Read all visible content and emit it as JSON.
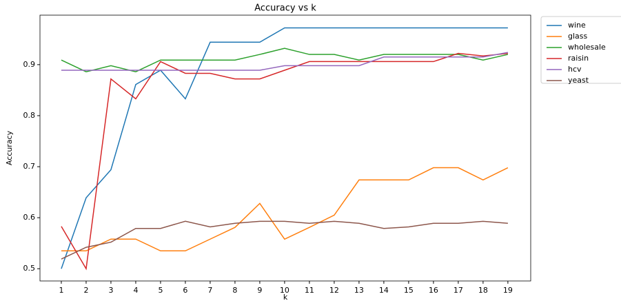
{
  "chart_data": {
    "type": "line",
    "title": "Accuracy vs k",
    "x_label": "k",
    "y_label": "Accuracy",
    "x": [
      1,
      2,
      3,
      4,
      5,
      6,
      7,
      8,
      9,
      10,
      11,
      12,
      13,
      14,
      15,
      16,
      17,
      18,
      19
    ],
    "xlim": [
      0.14,
      19.92
    ],
    "xticks": [
      1,
      2,
      3,
      4,
      5,
      6,
      7,
      8,
      9,
      10,
      11,
      12,
      13,
      14,
      15,
      16,
      17,
      18,
      19
    ],
    "ylim": [
      0.476,
      0.997
    ],
    "yticks": [
      0.5,
      0.6,
      0.7,
      0.8,
      0.9
    ],
    "legend": "outside upper right",
    "series": [
      {
        "name": "wine",
        "color": "#1f77b4",
        "values": [
          0.5,
          0.639,
          0.694,
          0.861,
          0.889,
          0.833,
          0.944,
          0.944,
          0.944,
          0.972,
          0.972,
          0.972,
          0.972,
          0.972,
          0.972,
          0.972,
          0.972,
          0.972,
          0.972
        ]
      },
      {
        "name": "glass",
        "color": "#ff7f0e",
        "values": [
          0.535,
          0.535,
          0.558,
          0.558,
          0.535,
          0.535,
          0.558,
          0.581,
          0.628,
          0.558,
          0.581,
          0.605,
          0.674,
          0.674,
          0.674,
          0.698,
          0.698,
          0.674,
          0.698
        ]
      },
      {
        "name": "wholesale",
        "color": "#2ca02c",
        "values": [
          0.909,
          0.886,
          0.898,
          0.886,
          0.909,
          0.909,
          0.909,
          0.909,
          0.92,
          0.932,
          0.92,
          0.92,
          0.909,
          0.92,
          0.92,
          0.92,
          0.92,
          0.909,
          0.92
        ]
      },
      {
        "name": "raisin",
        "color": "#d62728",
        "values": [
          0.583,
          0.5,
          0.872,
          0.833,
          0.906,
          0.883,
          0.883,
          0.872,
          0.872,
          0.889,
          0.906,
          0.906,
          0.906,
          0.906,
          0.906,
          0.906,
          0.922,
          0.917,
          0.922
        ]
      },
      {
        "name": "hcv",
        "color": "#9467bd",
        "values": [
          0.889,
          0.889,
          0.889,
          0.889,
          0.889,
          0.889,
          0.889,
          0.889,
          0.889,
          0.898,
          0.898,
          0.898,
          0.898,
          0.915,
          0.915,
          0.915,
          0.915,
          0.915,
          0.924
        ]
      },
      {
        "name": "yeast",
        "color": "#8c564b",
        "values": [
          0.519,
          0.542,
          0.552,
          0.579,
          0.579,
          0.593,
          0.582,
          0.589,
          0.593,
          0.593,
          0.589,
          0.593,
          0.589,
          0.579,
          0.582,
          0.589,
          0.589,
          0.593,
          0.589
        ]
      }
    ]
  }
}
